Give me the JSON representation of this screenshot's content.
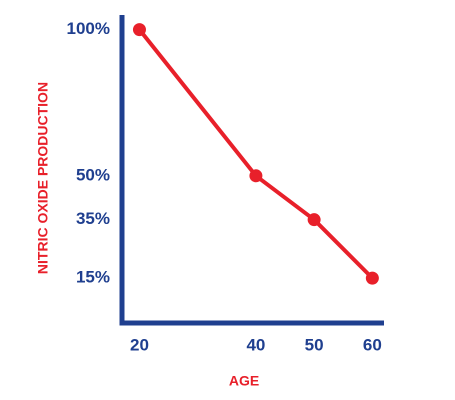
{
  "chart_data": {
    "type": "line",
    "x_label": "AGE",
    "y_label": "NITRIC OXIDE PRODUCTION",
    "x": [
      20,
      40,
      50,
      60
    ],
    "series": [
      {
        "color": "#e8202a",
        "values": [
          100,
          50,
          35,
          15
        ]
      }
    ],
    "xlim": [
      17,
      62
    ],
    "xticks": [
      20,
      40,
      50,
      60
    ],
    "ylim": [
      0,
      105
    ],
    "yticks": [
      {
        "value": 15,
        "label": "15%"
      },
      {
        "value": 35,
        "label": "35%"
      },
      {
        "value": 50,
        "label": "50%"
      },
      {
        "value": 100,
        "label": "100%"
      }
    ],
    "axis_color": "#1f3f8f",
    "grid": false
  }
}
